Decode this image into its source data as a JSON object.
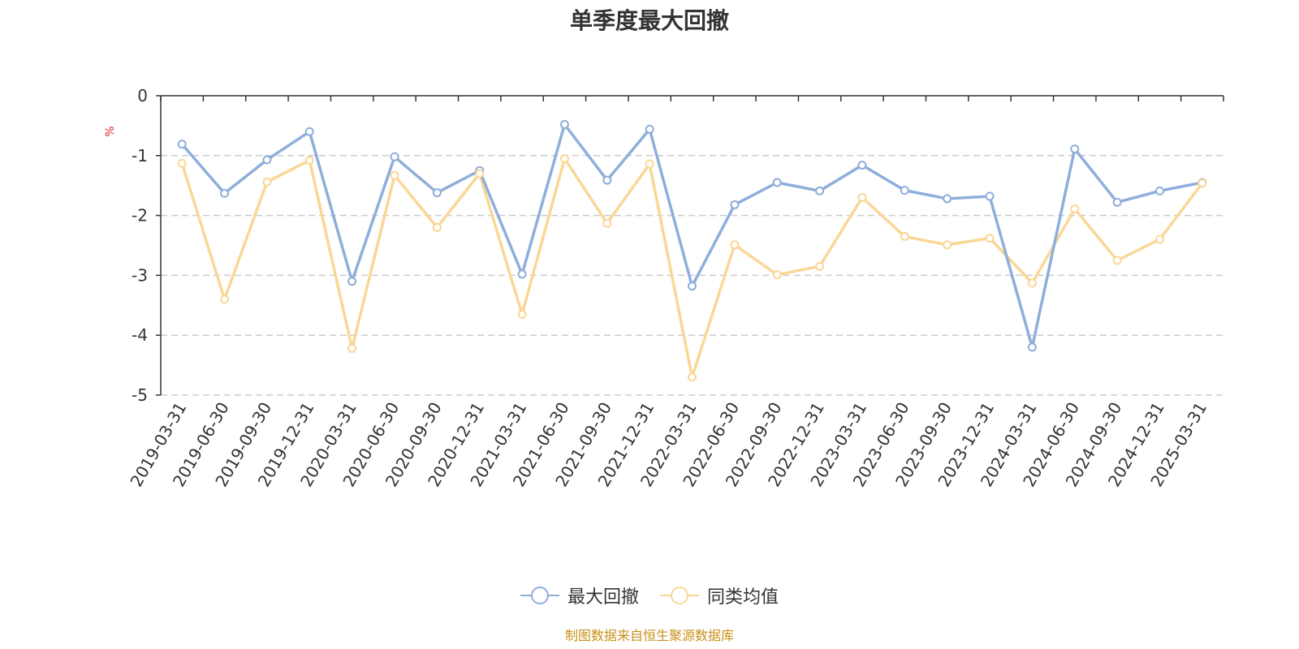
{
  "chart_data": {
    "type": "line",
    "title": "单季度最大回撤",
    "ylabel": "%",
    "ylim": [
      -5,
      0
    ],
    "yticks": [
      0,
      -1,
      -2,
      -3,
      -4,
      -5
    ],
    "grid": true,
    "legend_position": "bottom",
    "categories": [
      "2019-03-31",
      "2019-06-30",
      "2019-09-30",
      "2019-12-31",
      "2020-03-31",
      "2020-06-30",
      "2020-09-30",
      "2020-12-31",
      "2021-03-31",
      "2021-06-30",
      "2021-09-30",
      "2021-12-31",
      "2022-03-31",
      "2022-06-30",
      "2022-09-30",
      "2022-12-31",
      "2023-03-31",
      "2023-06-30",
      "2023-09-30",
      "2023-12-31",
      "2024-03-31",
      "2024-06-30",
      "2024-09-30",
      "2024-12-31",
      "2025-03-31"
    ],
    "series": [
      {
        "name": "最大回撤",
        "color": "#8eaedb",
        "values": [
          -0.81,
          -1.63,
          -1.07,
          -0.6,
          -3.1,
          -1.02,
          -1.62,
          -1.25,
          -2.98,
          -0.48,
          -1.41,
          -0.56,
          -3.18,
          -1.82,
          -1.45,
          -1.59,
          -1.16,
          -1.58,
          -1.72,
          -1.68,
          -4.2,
          -0.89,
          -1.78,
          -1.59,
          -1.45
        ]
      },
      {
        "name": "同类均值",
        "color": "#fad797",
        "values": [
          -1.13,
          -3.4,
          -1.44,
          -1.08,
          -4.22,
          -1.33,
          -2.2,
          -1.3,
          -3.65,
          -1.05,
          -2.13,
          -1.14,
          -4.7,
          -2.49,
          -2.99,
          -2.85,
          -1.7,
          -2.35,
          -2.49,
          -2.38,
          -3.13,
          -1.89,
          -2.75,
          -2.4,
          -1.46
        ]
      }
    ]
  },
  "footer": {
    "source": "制图数据来自恒生聚源数据库"
  }
}
